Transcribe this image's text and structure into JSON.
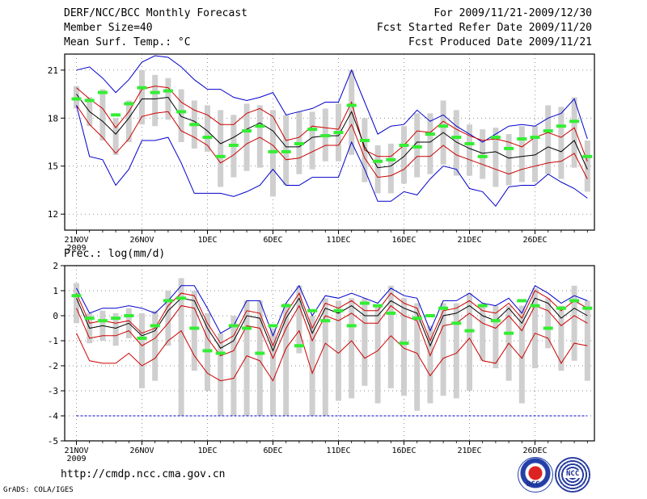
{
  "header": {
    "title": "DERF/NCC/BCC Monthly Forecast",
    "member_size": "Member Size=40",
    "variable": "Mean Surf. Temp.: °C",
    "period": "For 2009/11/21-2009/12/30",
    "started": "Fcst Started Refer Date 2009/11/20",
    "produced": "Fcst Produced Date 2009/11/21"
  },
  "footer": {
    "url": "http://cmdp.ncc.cma.gov.cn",
    "grads": "GrADS: COLA/IGES",
    "logo1": "BCC",
    "logo2": "NCC"
  },
  "chart_data": [
    {
      "type": "line",
      "title": "Mean Surf. Temp.: °C",
      "ylim": [
        11,
        22
      ],
      "yticks": [
        12,
        15,
        18,
        21
      ],
      "xticks": [
        "21NOV",
        "26NOV",
        "1DEC",
        "6DEC",
        "11DEC",
        "16DEC",
        "21DEC",
        "26DEC"
      ],
      "year_label": "2009",
      "days": 40,
      "series": [
        {
          "name": "max",
          "color": "#0000cc",
          "values": [
            21,
            21.2,
            20.5,
            19.6,
            20.4,
            21.5,
            21.9,
            21.8,
            21.2,
            20.4,
            19.8,
            19.8,
            19.3,
            19.1,
            19.3,
            19.6,
            18.2,
            18.4,
            18.6,
            19,
            19,
            21,
            19,
            17,
            17.5,
            17.6,
            18.5,
            17.8,
            18.2,
            17.5,
            17,
            16.5,
            17,
            17.5,
            17.6,
            17.5,
            18,
            18.3,
            19.2,
            16.7
          ]
        },
        {
          "name": "upper",
          "color": "#cc0000",
          "values": [
            19.9,
            19.2,
            18.6,
            17.4,
            18.4,
            19.8,
            20,
            19.9,
            19,
            18.5,
            18.2,
            17.6,
            17.6,
            18.3,
            18.6,
            18.1,
            16.6,
            16.8,
            17.5,
            17.4,
            17.3,
            19,
            16,
            15.6,
            15.6,
            16.3,
            17.2,
            17.1,
            17.8,
            17.3,
            16.9,
            16.6,
            16.7,
            16.5,
            16.2,
            16.8,
            17.1,
            16.8,
            17.4,
            15.3
          ]
        },
        {
          "name": "mean",
          "color": "#000000",
          "values": [
            19.5,
            18.4,
            17.8,
            17,
            18,
            19.2,
            19.2,
            19.3,
            18.1,
            17.8,
            17.2,
            16.4,
            16.8,
            17.3,
            17.7,
            17.2,
            16.2,
            16.2,
            16.8,
            16.9,
            16.9,
            18.4,
            16.2,
            14.9,
            15,
            15.6,
            16.5,
            16.5,
            17.1,
            16.5,
            16.1,
            15.8,
            15.9,
            15.5,
            15.6,
            15.7,
            16.2,
            15.9,
            16.6,
            14.8
          ]
        },
        {
          "name": "lower",
          "color": "#cc0000",
          "values": [
            18.8,
            17.6,
            16.8,
            15.8,
            16.7,
            18.1,
            18.3,
            18.4,
            17.2,
            16.8,
            16.3,
            15.2,
            15.7,
            16.4,
            16.8,
            16.3,
            15.4,
            15.5,
            15.9,
            16.3,
            16.3,
            17.6,
            15.5,
            14.3,
            14.4,
            14.8,
            15.6,
            15.6,
            16.3,
            15.7,
            15.4,
            15.1,
            14.8,
            14.5,
            14.8,
            15,
            15.2,
            15.3,
            15.8,
            14.2
          ]
        },
        {
          "name": "min",
          "color": "#0000cc",
          "values": [
            18.8,
            15.6,
            15.4,
            13.8,
            14.8,
            16.6,
            16.6,
            16.8,
            15.2,
            13.3,
            13.3,
            13.3,
            13.1,
            13.4,
            13.8,
            14.8,
            13.8,
            13.8,
            14.3,
            14.3,
            14.3,
            16.5,
            14.8,
            12.8,
            12.8,
            13.4,
            13.2,
            14.2,
            15,
            14.8,
            13.6,
            13.4,
            12.5,
            13.7,
            13.8,
            13.8,
            14.5,
            14,
            13.6,
            13
          ]
        }
      ],
      "bars_low": [
        18.6,
        17.5,
        16.6,
        15.7,
        16.5,
        17.6,
        17.5,
        17.9,
        16.5,
        16.1,
        15.9,
        13.7,
        14.3,
        14.7,
        14.9,
        13.1,
        13.8,
        14.5,
        14.8,
        15.3,
        15.3,
        15.7,
        14,
        13.3,
        13.3,
        13.9,
        14.3,
        14.5,
        15.1,
        14.4,
        14.4,
        14.2,
        13.7,
        13.8,
        14,
        14,
        14.5,
        14.2,
        14.9,
        13.4
      ],
      "bars_high": [
        20,
        19.3,
        19.8,
        18,
        19.1,
        21,
        20.7,
        20.5,
        19.8,
        19.1,
        18.8,
        18.5,
        18.2,
        18.9,
        18.8,
        18.5,
        18.2,
        18.4,
        18.4,
        18.6,
        18.9,
        21,
        18,
        16.3,
        16.4,
        17.5,
        18.3,
        18.3,
        19.1,
        18.5,
        17.6,
        17.3,
        17.4,
        17,
        17.5,
        17.5,
        18.8,
        18.7,
        19.3,
        16.6
      ],
      "green_marks": [
        19.2,
        19.1,
        19.6,
        18.2,
        18.9,
        19.9,
        19.6,
        19.7,
        18.4,
        17.6,
        16.8,
        15.6,
        16.3,
        17.2,
        17.5,
        15.9,
        15.9,
        16.4,
        17.3,
        16.9,
        17.1,
        18.8,
        16.6,
        15.3,
        15.4,
        16.3,
        16.2,
        17,
        17.5,
        16.8,
        16.4,
        15.6,
        16.8,
        16.1,
        16.7,
        16.8,
        17.2,
        17.5,
        17.8,
        15.6
      ]
    },
    {
      "type": "line",
      "title": "Prec.: log(mm/d)",
      "ylim": [
        -5,
        2
      ],
      "yticks": [
        -5,
        -4,
        -3,
        -2,
        -1,
        0,
        1,
        2
      ],
      "xticks": [
        "21NOV",
        "26NOV",
        "1DEC",
        "6DEC",
        "11DEC",
        "16DEC",
        "21DEC",
        "26DEC"
      ],
      "year_label": "2009",
      "days": 40,
      "series": [
        {
          "name": "max",
          "color": "#0000cc",
          "values": [
            1.1,
            0.1,
            0.3,
            0.3,
            0.4,
            0.3,
            0.1,
            0.6,
            1.2,
            1.2,
            0.3,
            -0.7,
            -0.4,
            0.6,
            0.6,
            -0.8,
            0.5,
            1.2,
            0,
            0.8,
            0.7,
            0.9,
            0.7,
            0.5,
            1.1,
            0.8,
            0.7,
            -0.6,
            0.6,
            0.6,
            0.9,
            0.5,
            0.4,
            0.7,
            0.1,
            1.2,
            0.9,
            0.5,
            0.8,
            0.6
          ]
        },
        {
          "name": "upper",
          "color": "#cc0000",
          "values": [
            0.9,
            -0.3,
            -0.2,
            -0.3,
            -0.2,
            -0.7,
            -0.5,
            0.4,
            0.9,
            0.8,
            -0.3,
            -1.1,
            -0.8,
            0.2,
            0.1,
            -1.2,
            0.1,
            0.9,
            -0.5,
            0.5,
            0.3,
            0.6,
            0.2,
            0.2,
            0.9,
            0.5,
            0.3,
            -1,
            0.2,
            0.3,
            0.6,
            0.2,
            0.1,
            0.5,
            -0.1,
            1,
            0.7,
            0.2,
            0.6,
            0.3
          ]
        },
        {
          "name": "mean",
          "color": "#000000",
          "values": [
            0.7,
            -0.5,
            -0.4,
            -0.5,
            -0.3,
            -0.8,
            -0.6,
            0.2,
            0.7,
            0.6,
            -0.5,
            -1.3,
            -1,
            0,
            -0.1,
            -1.4,
            -0.1,
            0.7,
            -0.7,
            0.3,
            0.1,
            0.4,
            0,
            0,
            0.6,
            0.3,
            0.1,
            -1.2,
            0,
            0.1,
            0.4,
            0,
            -0.2,
            0.3,
            -0.3,
            0.7,
            0.5,
            -0.1,
            0.3,
            0
          ]
        },
        {
          "name": "lower",
          "color": "#cc0000",
          "values": [
            0.3,
            -0.9,
            -0.8,
            -0.8,
            -0.6,
            -1.2,
            -0.9,
            -0.3,
            0.4,
            0.3,
            -0.9,
            -1.6,
            -1.4,
            -0.4,
            -0.5,
            -1.7,
            -0.5,
            0.4,
            -1,
            0,
            -0.2,
            0.1,
            -0.3,
            -0.3,
            0.4,
            0,
            -0.2,
            -1.6,
            -0.4,
            -0.3,
            0.1,
            -0.3,
            -0.5,
            0,
            -0.6,
            0.4,
            0.2,
            -0.4,
            0,
            -0.3
          ]
        },
        {
          "name": "min",
          "color": "#cc0000",
          "values": [
            -0.7,
            -1.8,
            -1.9,
            -1.9,
            -1.5,
            -2,
            -1.7,
            -1,
            -0.6,
            -1.6,
            -2.3,
            -2.6,
            -2.5,
            -1.6,
            -1.8,
            -2.6,
            -1.3,
            -0.6,
            -2.3,
            -1.1,
            -1.5,
            -1,
            -1.7,
            -1.4,
            -0.8,
            -1.3,
            -1.5,
            -2.4,
            -1.7,
            -1.5,
            -0.9,
            -1.8,
            -1.9,
            -1.1,
            -1.7,
            -0.7,
            -0.9,
            -1.9,
            -1.1,
            -1.2
          ]
        },
        {
          "name": "floor",
          "color": "#0000cc",
          "values": [
            -4,
            -4,
            -4,
            -4,
            -4,
            -4,
            -4,
            -4,
            -4,
            -4,
            -4,
            -4,
            -4,
            -4,
            -4,
            -4,
            -4,
            -4,
            -4,
            -4,
            -4,
            -4,
            -4,
            -4,
            -4,
            -4,
            -4,
            -4,
            -4,
            -4,
            -4,
            -4,
            -4,
            -4,
            -4,
            -4,
            -4,
            -4,
            -4,
            -4
          ]
        }
      ],
      "bars_low": [
        -0.3,
        -1.1,
        -1,
        -1.2,
        -0.9,
        -2.9,
        -2.6,
        -1.2,
        -4,
        -2.2,
        -3,
        -4,
        -4,
        -4,
        -4,
        -4,
        -4,
        -1.5,
        -4,
        -4,
        -3.4,
        -3.3,
        -2.8,
        -3.5,
        -2.9,
        -3.2,
        -3.8,
        -3.5,
        -3.2,
        -3.3,
        -3,
        -1.8,
        -2.1,
        -2.6,
        -3.5,
        -2.1,
        -1.3,
        -2.2,
        -1.8,
        -2.6
      ],
      "bars_high": [
        1.3,
        0.1,
        0.2,
        0.1,
        0.3,
        0.1,
        0.2,
        1,
        1.5,
        1,
        0.1,
        -0.7,
        0,
        0.6,
        0.6,
        -0.5,
        0.5,
        1.2,
        0,
        0.7,
        0.6,
        0.7,
        0.7,
        0.4,
        1.2,
        0.7,
        0.5,
        -0.4,
        0.5,
        0.5,
        0.9,
        0.5,
        0.4,
        0.4,
        0.4,
        1.1,
        0.7,
        0.4,
        1.2,
        0.6
      ],
      "green_marks": [
        0.8,
        -0.1,
        -0.2,
        -0.1,
        0,
        -0.9,
        -0.4,
        0.6,
        0.7,
        -0.5,
        -1.4,
        -1.5,
        -0.4,
        -0.5,
        -1.5,
        -0.4,
        0.4,
        -1.2,
        0.2,
        -0.2,
        0.2,
        -0.4,
        0.5,
        0.4,
        0.1,
        -1.1,
        -0.1,
        0,
        0.3,
        -0.3,
        -0.6,
        0.4,
        -0.2,
        -0.7,
        0.6,
        0.4,
        -0.5,
        0.3,
        0.6,
        0.3
      ]
    }
  ]
}
